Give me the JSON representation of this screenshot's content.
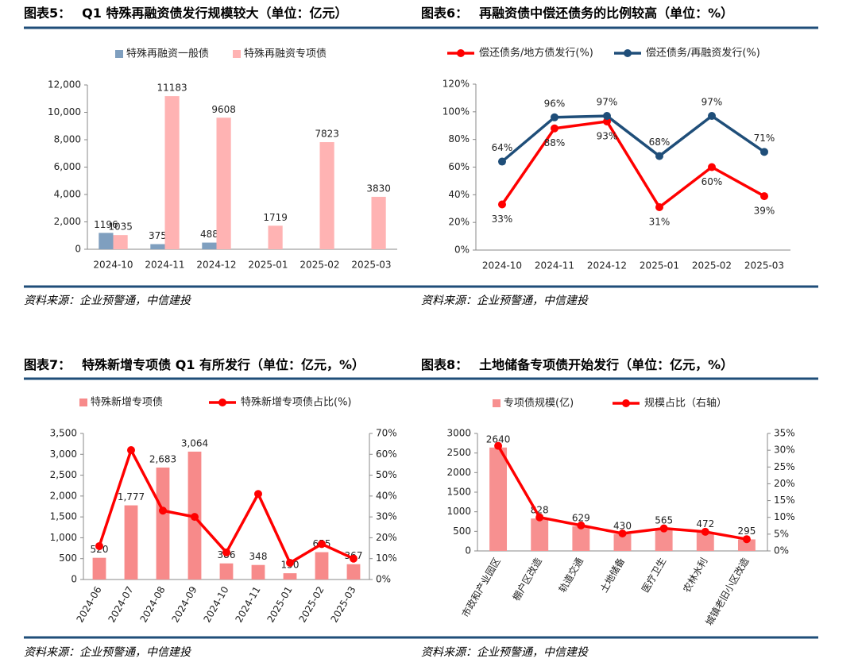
{
  "chart_data": [
    {
      "label": "图表5：",
      "title": "Q1 特殊再融资债发行规模较大（单位：亿元）",
      "source": "资料来源：企业预警通，中信建投",
      "type": "bar",
      "categories": [
        "2024-10",
        "2024-11",
        "2024-12",
        "2025-01",
        "2025-02",
        "2025-03"
      ],
      "series": [
        {
          "name": "特殊再融资一般债",
          "color": "#7f9fbf",
          "type": "bar",
          "values": [
            1196,
            375,
            488,
            null,
            null,
            null
          ]
        },
        {
          "name": "特殊再融资专项债",
          "color": "#ffb3b3",
          "type": "bar",
          "values": [
            1035,
            11183,
            9608,
            1719,
            7823,
            3830
          ]
        }
      ],
      "ylim": [
        0,
        12000
      ],
      "yticks": [
        0,
        {
          "value": 2000,
          "label": "2,000"
        },
        {
          "value": 4000,
          "label": "4,000"
        },
        {
          "value": 6000,
          "label": "6,000"
        },
        {
          "value": 8000,
          "label": "8,000"
        },
        {
          "value": 10000,
          "label": "10,000"
        },
        {
          "value": 12000,
          "label": "12,000"
        }
      ],
      "grid": false,
      "legend": "top"
    },
    {
      "label": "图表6：",
      "title": "再融资债中偿还债务的比例较高（单位：%）",
      "source": "资料来源：企业预警通，中信建投",
      "type": "line",
      "categories": [
        "2024-10",
        "2024-11",
        "2024-12",
        "2025-01",
        "2025-02",
        "2025-03"
      ],
      "series": [
        {
          "name": "偿还债务/地方债发行(%)",
          "color": "#ff0000",
          "type": "line",
          "values": [
            33,
            88,
            93,
            31,
            60,
            39
          ],
          "value_labels": [
            "33%",
            "88%",
            "93%",
            "31%",
            "60%",
            "39%"
          ]
        },
        {
          "name": "偿还债务/再融资发行(%)",
          "color": "#1f4e79",
          "type": "line",
          "values": [
            64,
            96,
            97,
            68,
            97,
            71
          ],
          "value_labels": [
            "64%",
            "96%",
            "97%",
            "68%",
            "97%",
            "71%"
          ]
        }
      ],
      "ylim": [
        0,
        120
      ],
      "yticks": [
        {
          "value": 0,
          "label": "0%"
        },
        {
          "value": 20,
          "label": "20%"
        },
        {
          "value": 40,
          "label": "40%"
        },
        {
          "value": 60,
          "label": "60%"
        },
        {
          "value": 80,
          "label": "80%"
        },
        {
          "value": 100,
          "label": "100%"
        },
        {
          "value": 120,
          "label": "120%"
        }
      ],
      "grid": false,
      "legend": "top"
    },
    {
      "label": "图表7：",
      "title": "特殊新增专项债 Q1 有所发行（单位：亿元，%）",
      "source": "资料来源：企业预警通，中信建投",
      "type": "combo",
      "categories": [
        "2024-06",
        "2024-07",
        "2024-08",
        "2024-09",
        "2024-10",
        "2024-11",
        "2025-01",
        "2025-02",
        "2025-03"
      ],
      "series": [
        {
          "name": "特殊新增专项债",
          "color": "#f78a8a",
          "type": "bar",
          "values": [
            520,
            1777,
            2683,
            3064,
            386,
            348,
            150,
            655,
            367
          ],
          "value_labels": [
            "520",
            "1,777",
            "2,683",
            "3,064",
            "386",
            "348",
            "150",
            "655",
            "367"
          ]
        },
        {
          "name": "特殊新增专项债占比(%)",
          "color": "#ff0000",
          "type": "line",
          "axis": "y2",
          "values": [
            16,
            62,
            33,
            30,
            13,
            41,
            8,
            17,
            10
          ]
        }
      ],
      "ylim": [
        0,
        3500
      ],
      "yticks": [
        0,
        500,
        {
          "value": 1000,
          "label": "1,000"
        },
        {
          "value": 1500,
          "label": "1,500"
        },
        {
          "value": 2000,
          "label": "2,000"
        },
        {
          "value": 2500,
          "label": "2,500"
        },
        {
          "value": 3000,
          "label": "3,000"
        },
        {
          "value": 3500,
          "label": "3,500"
        }
      ],
      "y2lim": [
        0,
        70
      ],
      "y2ticks": [
        {
          "value": 0,
          "label": "0%"
        },
        {
          "value": 10,
          "label": "10%"
        },
        {
          "value": 20,
          "label": "20%"
        },
        {
          "value": 30,
          "label": "30%"
        },
        {
          "value": 40,
          "label": "40%"
        },
        {
          "value": 50,
          "label": "50%"
        },
        {
          "value": 60,
          "label": "60%"
        },
        {
          "value": 70,
          "label": "70%"
        }
      ],
      "xtick_rotation": -60,
      "grid": false,
      "legend": "top"
    },
    {
      "label": "图表8：",
      "title": "土地储备专项债开始发行（单位：亿元，%）",
      "source": "资料来源：企业预警通，中信建投",
      "type": "combo",
      "categories": [
        "市政和产业园区",
        "棚户区改造",
        "轨道交通",
        "土地储备",
        "医疗卫生",
        "农林水利",
        "城镇老旧小区改造"
      ],
      "series": [
        {
          "name": "专项债规模(亿)",
          "color": "#f79090",
          "type": "bar",
          "values": [
            2640,
            828,
            629,
            430,
            565,
            472,
            295
          ]
        },
        {
          "name": "规模占比（右轴）",
          "color": "#ff0000",
          "type": "line",
          "axis": "y2",
          "values": [
            31.3,
            10,
            7.6,
            5.2,
            6.7,
            5.7,
            3.5
          ]
        }
      ],
      "ylim": [
        0,
        3000
      ],
      "yticks": [
        0,
        500,
        1000,
        1500,
        2000,
        2500,
        3000
      ],
      "y2lim": [
        0,
        35
      ],
      "y2ticks": [
        {
          "value": 0,
          "label": "0%"
        },
        {
          "value": 5,
          "label": "5%"
        },
        {
          "value": 10,
          "label": "10%"
        },
        {
          "value": 15,
          "label": "15%"
        },
        {
          "value": 20,
          "label": "20%"
        },
        {
          "value": 25,
          "label": "25%"
        },
        {
          "value": 30,
          "label": "30%"
        },
        {
          "value": 35,
          "label": "35%"
        }
      ],
      "xtick_rotation": -60,
      "grid": false,
      "legend": "top"
    }
  ]
}
